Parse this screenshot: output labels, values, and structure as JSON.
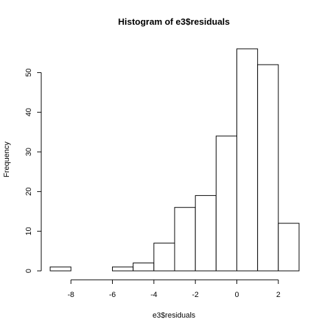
{
  "chart_data": {
    "type": "bar",
    "title": "Histogram of e3$residuals",
    "xlabel": "e3$residuals",
    "ylabel": "Frequency",
    "bins": [
      {
        "start": -9,
        "end": -8,
        "count": 1
      },
      {
        "start": -8,
        "end": -7,
        "count": 0
      },
      {
        "start": -7,
        "end": -6,
        "count": 0
      },
      {
        "start": -6,
        "end": -5,
        "count": 1
      },
      {
        "start": -5,
        "end": -4,
        "count": 2
      },
      {
        "start": -4,
        "end": -3,
        "count": 7
      },
      {
        "start": -3,
        "end": -2,
        "count": 16
      },
      {
        "start": -2,
        "end": -1,
        "count": 19
      },
      {
        "start": -1,
        "end": 0,
        "count": 34
      },
      {
        "start": 0,
        "end": 1,
        "count": 56
      },
      {
        "start": 1,
        "end": 2,
        "count": 52
      },
      {
        "start": 2,
        "end": 3,
        "count": 12
      }
    ],
    "xlim": [
      -9,
      3
    ],
    "ylim": [
      0,
      56
    ],
    "x_ticks": [
      -8,
      -6,
      -4,
      -2,
      0,
      2
    ],
    "x_tick_labels": [
      "-8",
      "-6",
      "-4",
      "-2",
      "0",
      "2"
    ],
    "y_ticks": [
      0,
      10,
      20,
      30,
      40,
      50
    ],
    "y_tick_labels": [
      "0",
      "10",
      "20",
      "30",
      "40",
      "50"
    ],
    "grid": false,
    "colors": {
      "bar_fill": "#ffffff",
      "bar_stroke": "#000000"
    }
  }
}
